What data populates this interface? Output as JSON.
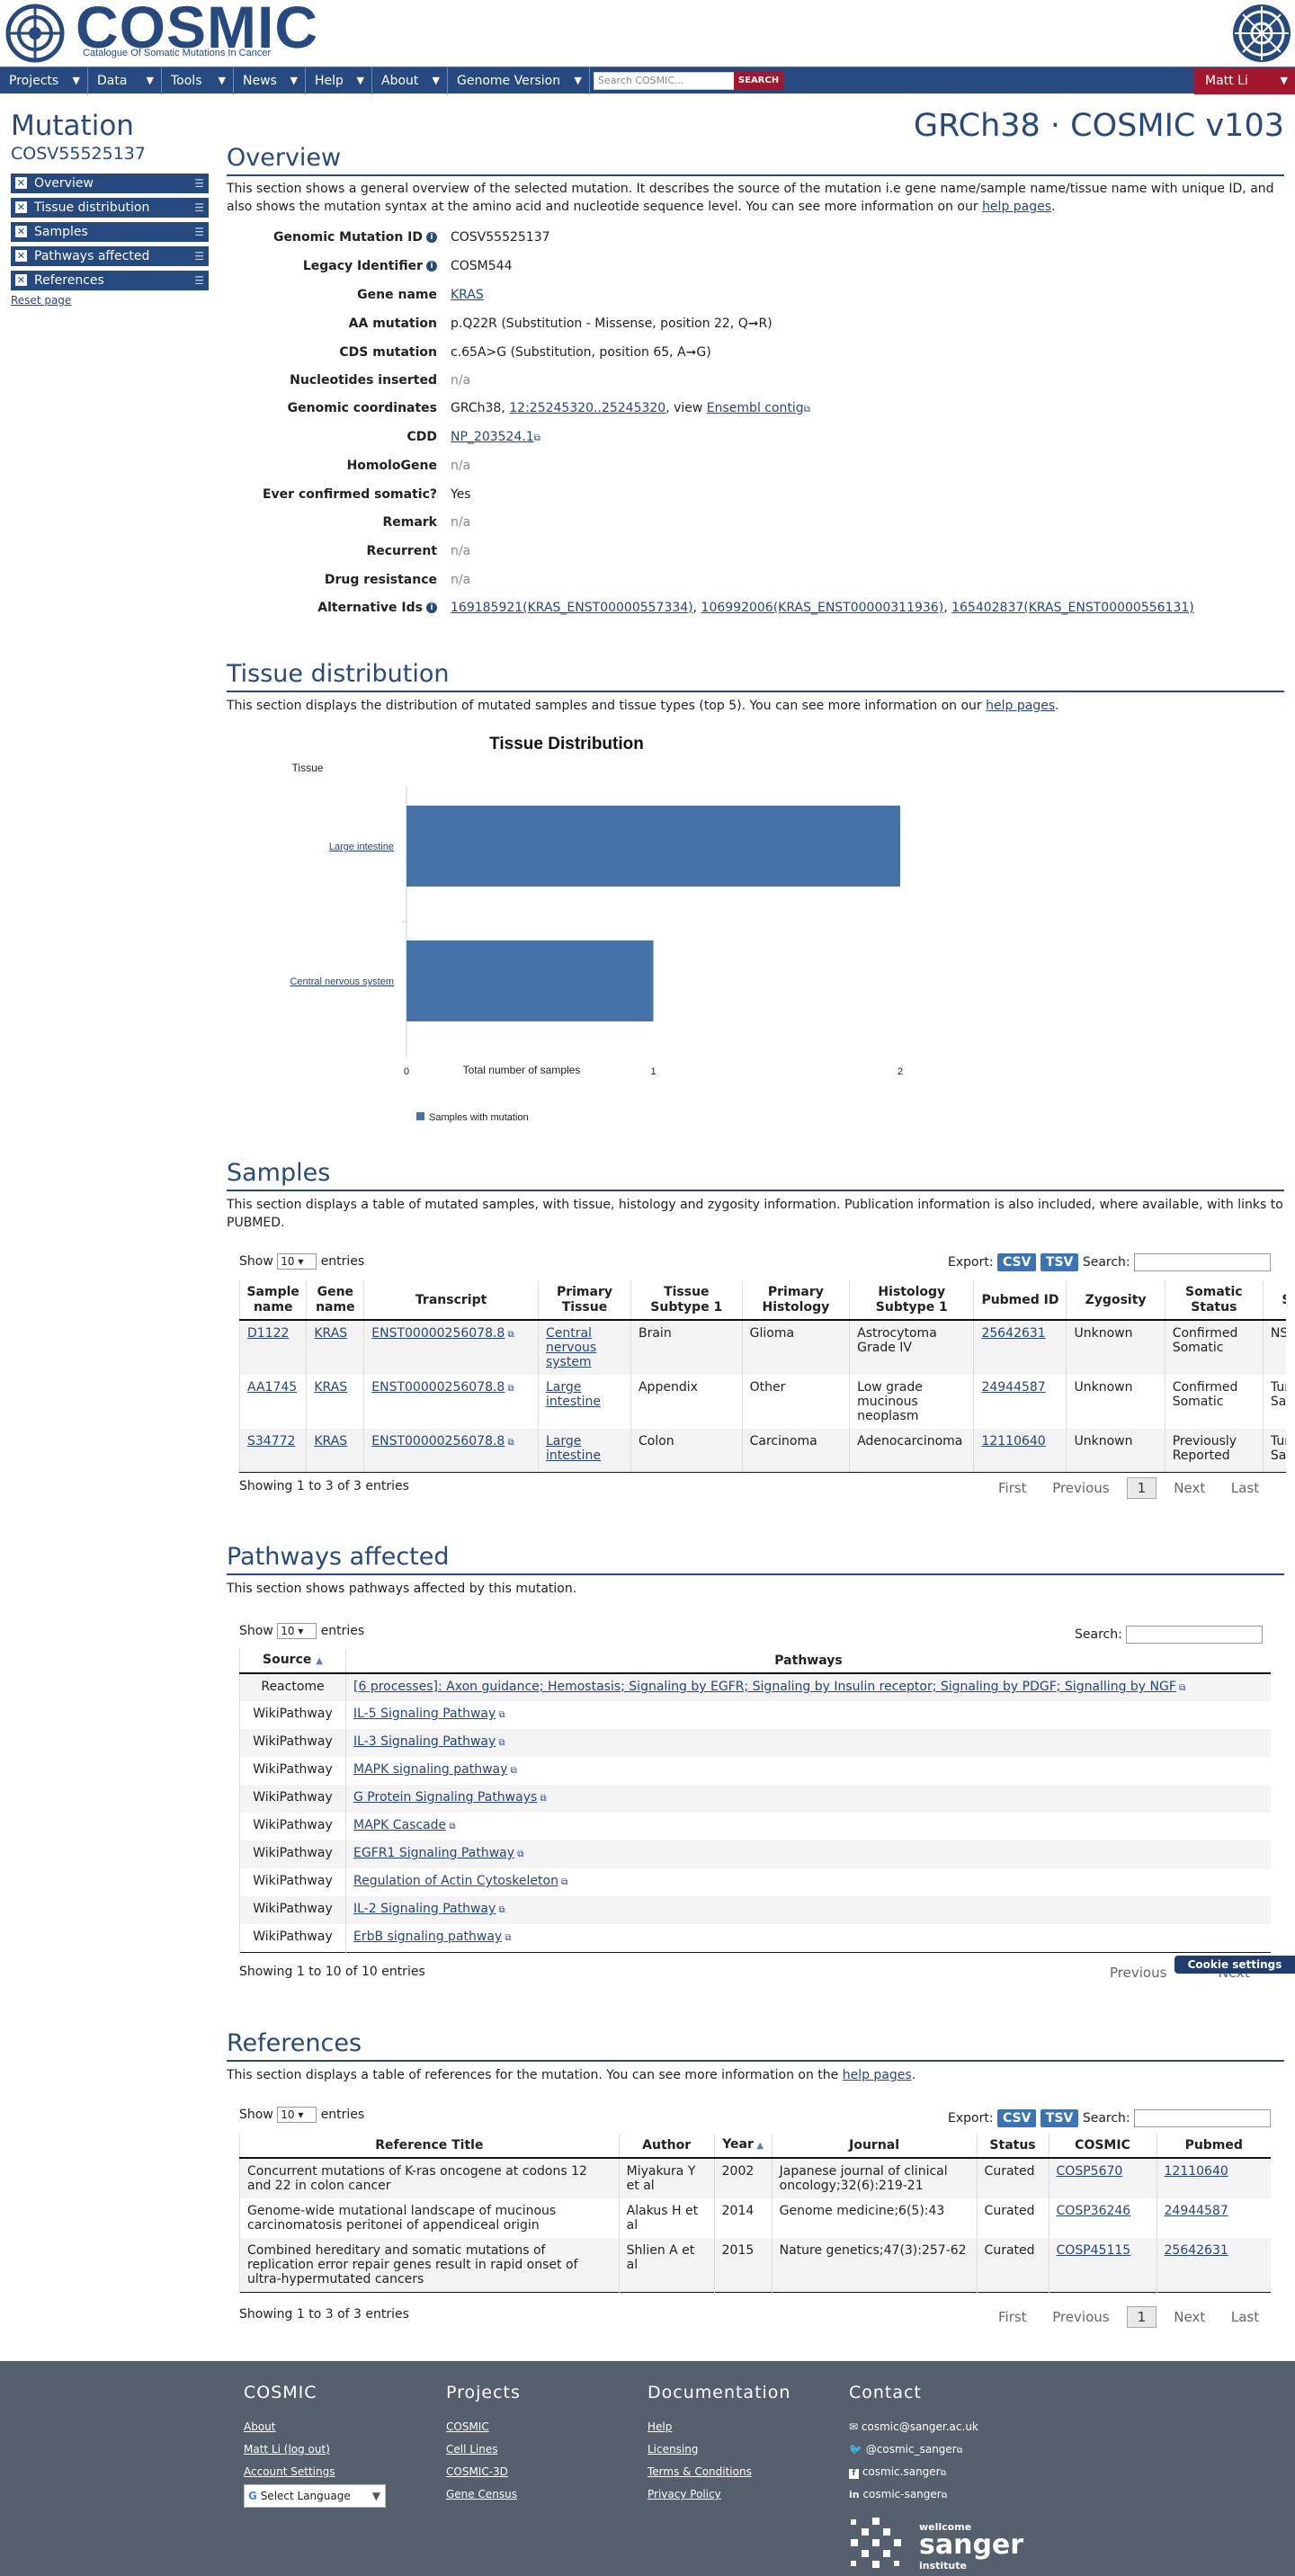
{
  "header": {
    "logo": "COSMIC",
    "tagline": "Catalogue Of Somatic Mutations In Cancer"
  },
  "nav": {
    "items": [
      "Projects",
      "Data",
      "Tools",
      "News",
      "Help",
      "About",
      "Genome Version"
    ],
    "search_placeholder": "Search COSMIC...",
    "search_button": "SEARCH",
    "user": "Matt Li"
  },
  "page": {
    "title": "Mutation",
    "id": "COSV55525137",
    "genome": "GRCh38 · COSMIC v103",
    "reset": "Reset page"
  },
  "sidebar": {
    "items": [
      "Overview",
      "Tissue distribution",
      "Samples",
      "Pathways affected",
      "References"
    ]
  },
  "overview": {
    "title": "Overview",
    "desc_pre": "This section shows a general overview of the selected mutation. It describes the source of the mutation i.e gene name/sample name/tissue name with unique ID, and also shows the mutation syntax at the amino acid and nucleotide sequence level. You can see more information on our ",
    "desc_link": "help pages",
    "desc_post": ".",
    "fields": {
      "gmid_label": "Genomic Mutation ID",
      "gmid": "COSV55525137",
      "legacy_label": "Legacy Identifier",
      "legacy": "COSM544",
      "gene_label": "Gene name",
      "gene": "KRAS",
      "aa_label": "AA mutation",
      "aa": "p.Q22R (Substitution - Missense, position 22, Q➞R)",
      "cds_label": "CDS mutation",
      "cds": "c.65A>G (Substitution, position 65, A➞G)",
      "nuc_label": "Nucleotides inserted",
      "nuc": "n/a",
      "coord_label": "Genomic coordinates",
      "coord_pre": "GRCh38, ",
      "coord_link": "12:25245320..25245320",
      "coord_mid": ", view ",
      "coord_link2": "Ensembl contig",
      "cdd_label": "CDD",
      "cdd": "NP_203524.1",
      "homolo_label": "HomoloGene",
      "homolo": "n/a",
      "confirmed_label": "Ever confirmed somatic?",
      "confirmed": "Yes",
      "remark_label": "Remark",
      "remark": "n/a",
      "recurrent_label": "Recurrent",
      "recurrent": "n/a",
      "drug_label": "Drug resistance",
      "drug": "n/a",
      "alt_label": "Alternative Ids",
      "alt": [
        "169185921(KRAS_ENST00000557334)",
        "106992006(KRAS_ENST00000311936)",
        "165402837(KRAS_ENST00000556131)"
      ]
    }
  },
  "tissue": {
    "title": "Tissue distribution",
    "desc_pre": "This section displays the distribution of mutated samples and tissue types (top 5). You can see more information on our ",
    "desc_link": "help pages",
    "desc_post": "."
  },
  "chart_data": {
    "type": "bar",
    "orientation": "horizontal",
    "title": "Tissue Distribution",
    "ylabel": "Tissue",
    "xlabel": "Total number of samples",
    "categories": [
      "Large intestine",
      "Central nervous system"
    ],
    "series": [
      {
        "name": "Samples with mutation",
        "values": [
          2,
          1
        ],
        "color": "#4572a7"
      }
    ],
    "xlim": [
      0,
      2
    ],
    "xticks": [
      "0",
      "1",
      "2"
    ],
    "legend": "bottom-left"
  },
  "samples": {
    "title": "Samples",
    "desc": "This section displays a table of mutated samples, with tissue, histology and zygosity information. Publication information is also included, where available, with links to PUBMED.",
    "show": "Show",
    "entries": "entries",
    "len": "10",
    "export": "Export:",
    "csv": "CSV",
    "tsv": "TSV",
    "search": "Search:",
    "columns": [
      "Sample name",
      "Gene name",
      "Transcript",
      "Primary Tissue",
      "Tissue Subtype 1",
      "Primary Histology",
      "Histology Subtype 1",
      "Pubmed ID",
      "Zygosity",
      "Somatic Status",
      "S"
    ],
    "rows": [
      [
        "D1122",
        "KRAS",
        "ENST00000256078.8",
        "Central nervous system",
        "Brain",
        "Glioma",
        "Astrocytoma Grade IV",
        "25642631",
        "Unknown",
        "Confirmed Somatic",
        "NS"
      ],
      [
        "AA1745",
        "KRAS",
        "ENST00000256078.8",
        "Large intestine",
        "Appendix",
        "Other",
        "Low grade mucinous neoplasm",
        "24944587",
        "Unknown",
        "Confirmed Somatic",
        "Tur Sar"
      ],
      [
        "S34772",
        "KRAS",
        "ENST00000256078.8",
        "Large intestine",
        "Colon",
        "Carcinoma",
        "Adenocarcinoma",
        "12110640",
        "Unknown",
        "Previously Reported",
        "Tur Sar"
      ]
    ],
    "info": "Showing 1 to 3 of 3 entries",
    "pager": [
      "First",
      "Previous",
      "1",
      "Next",
      "Last"
    ]
  },
  "pathways": {
    "title": "Pathways affected",
    "desc": "This section shows pathways affected by this mutation.",
    "show": "Show",
    "entries": "entries",
    "len": "10",
    "search": "Search:",
    "columns": [
      "Source",
      "Pathways"
    ],
    "rows": [
      [
        "Reactome",
        "[6 processes]: Axon guidance; Hemostasis; Signaling by EGFR; Signaling by Insulin receptor; Signaling by PDGF; Signalling by NGF"
      ],
      [
        "WikiPathway",
        "IL-5 Signaling Pathway"
      ],
      [
        "WikiPathway",
        "IL-3 Signaling Pathway"
      ],
      [
        "WikiPathway",
        "MAPK signaling pathway"
      ],
      [
        "WikiPathway",
        "G Protein Signaling Pathways"
      ],
      [
        "WikiPathway",
        "MAPK Cascade"
      ],
      [
        "WikiPathway",
        "EGFR1 Signaling Pathway"
      ],
      [
        "WikiPathway",
        "Regulation of Actin Cytoskeleton"
      ],
      [
        "WikiPathway",
        "IL-2 Signaling Pathway"
      ],
      [
        "WikiPathway",
        "ErbB signaling pathway"
      ]
    ],
    "info": "Showing 1 to 10 of 10 entries",
    "pager": [
      "Previous",
      "Next"
    ]
  },
  "cookie": "Cookie settings",
  "references": {
    "title": "References",
    "desc_pre": "This section displays a table of references for the mutation. You can see more information on the ",
    "desc_link": "help pages",
    "desc_post": ".",
    "show": "Show",
    "entries": "entries",
    "len": "10",
    "export": "Export:",
    "csv": "CSV",
    "tsv": "TSV",
    "search": "Search:",
    "columns": [
      "Reference Title",
      "Author",
      "Year",
      "Journal",
      "Status",
      "COSMIC",
      "Pubmed"
    ],
    "rows": [
      [
        "Concurrent mutations of K-ras oncogene at codons 12 and 22 in colon cancer",
        "Miyakura Y et al",
        "2002",
        "Japanese journal of clinical oncology;32(6):219-21",
        "Curated",
        "COSP5670",
        "12110640"
      ],
      [
        "Genome-wide mutational landscape of mucinous carcinomatosis peritonei of appendiceal origin",
        "Alakus H et al",
        "2014",
        "Genome medicine;6(5):43",
        "Curated",
        "COSP36246",
        "24944587"
      ],
      [
        "Combined hereditary and somatic mutations of replication error repair genes result in rapid onset of ultra-hypermutated cancers",
        "Shlien A et al",
        "2015",
        "Nature genetics;47(3):257-62",
        "Curated",
        "COSP45115",
        "25642631"
      ]
    ],
    "info": "Showing 1 to 3 of 3 entries",
    "pager": [
      "First",
      "Previous",
      "1",
      "Next",
      "Last"
    ]
  },
  "footer": {
    "cosmic": {
      "title": "COSMIC",
      "links": [
        "About",
        "Matt Li (log out)",
        "Account Settings"
      ],
      "language": "Select Language"
    },
    "projects": {
      "title": "Projects",
      "links": [
        "COSMIC",
        "Cell Lines",
        "COSMIC-3D",
        "Gene Census"
      ]
    },
    "documentation": {
      "title": "Documentation",
      "links": [
        "Help",
        "Licensing",
        "Terms & Conditions",
        "Privacy Policy"
      ]
    },
    "contact": {
      "title": "Contact",
      "links": [
        "cosmic@sanger.ac.uk",
        "@cosmic_sanger",
        "cosmic.sanger",
        "cosmic-sanger"
      ]
    },
    "sanger": {
      "line1": "wellcome",
      "line2": "sanger",
      "line3": "institute"
    }
  }
}
